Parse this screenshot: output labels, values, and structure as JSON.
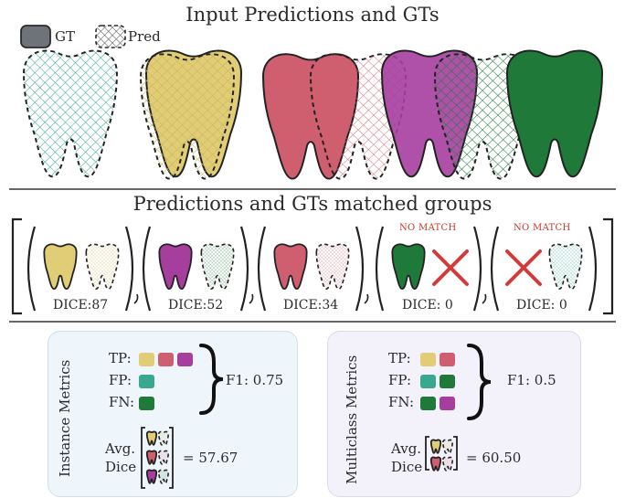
{
  "colors": {
    "yellow": "#e0cd75",
    "rose": "#cf5f6e",
    "purple": "#a63e9e",
    "green": "#1f7a3a",
    "teal": "#3aa88e",
    "cross": "#d23b3b",
    "panel_left": "#eef5fb",
    "panel_right": "#f3f2fa"
  },
  "legend": {
    "gt_label": "GT",
    "pred_label": "Pred"
  },
  "sections": {
    "input_title": "Input Predictions and GTs",
    "matched_title": "Predictions and GTs matched groups"
  },
  "groups": [
    {
      "gt_color": "yellow",
      "pred_color": "yellow",
      "dice_label": "DICE:87",
      "no_match": ""
    },
    {
      "gt_color": "purple",
      "pred_color": "green",
      "dice_label": "DICE:52",
      "no_match": ""
    },
    {
      "gt_color": "rose",
      "pred_color": "rose",
      "dice_label": "DICE:34",
      "no_match": ""
    },
    {
      "gt_color": "green",
      "pred_color": "none",
      "dice_label": "DICE: 0",
      "no_match": "NO MATCH"
    },
    {
      "gt_color": "none",
      "pred_color": "teal",
      "dice_label": "DICE: 0",
      "no_match": "NO MATCH"
    }
  ],
  "instance_metrics": {
    "title": "Instance Metrics",
    "tp_label": "TP:",
    "fp_label": "FP:",
    "fn_label": "FN:",
    "tp_colors": [
      "yellow",
      "rose",
      "purple"
    ],
    "fp_colors": [
      "teal"
    ],
    "fn_colors": [
      "green"
    ],
    "f1_label": "F1: 0.75",
    "avg_label": "Avg.",
    "dice_label": "Dice",
    "avg_dice_value": "= 57.67"
  },
  "multiclass_metrics": {
    "title": "Multiclass Metrics",
    "tp_label": "TP:",
    "fp_label": "FP:",
    "fn_label": "FN:",
    "tp_colors": [
      "yellow",
      "rose"
    ],
    "fp_colors": [
      "teal",
      "green"
    ],
    "fn_colors": [
      "green",
      "purple"
    ],
    "f1_label": "F1: 0.5",
    "avg_label": "Avg.",
    "dice_label": "Dice",
    "avg_dice_value": "= 60.50"
  }
}
